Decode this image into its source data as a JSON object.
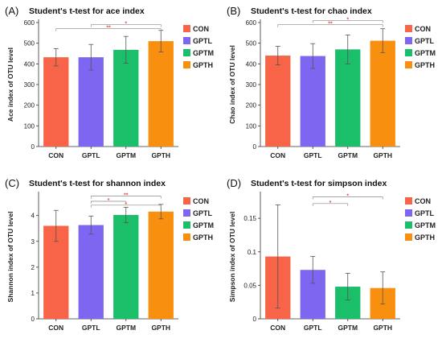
{
  "colors": {
    "CON": "#f76448",
    "GPTL": "#7f66f0",
    "GPTM": "#1bbf6a",
    "GPTH": "#f98f0f",
    "significance": "#e05555"
  },
  "chart_data": [
    {
      "panel": "(A)",
      "type": "bar",
      "title": "Student's t-test for ace index",
      "ylabel": "Ace index of OTU level",
      "xlabel": "",
      "categories": [
        "CON",
        "GPTL",
        "GPTM",
        "GPTH"
      ],
      "values": [
        432,
        432,
        468,
        510
      ],
      "errors": [
        42,
        62,
        65,
        52
      ],
      "ylim": [
        0,
        600
      ],
      "yticks": [
        "0",
        "100",
        "200",
        "300",
        "400",
        "500",
        "600"
      ],
      "legend": [
        "CON",
        "GPTL",
        "GPTM",
        "GPTH"
      ],
      "legend_position": "right",
      "significance": [
        {
          "from": 1,
          "to": 3,
          "label": "*",
          "y": 590
        },
        {
          "from": 0,
          "to": 3,
          "label": "**",
          "y": 570
        }
      ]
    },
    {
      "panel": "(B)",
      "type": "bar",
      "title": "Student's t-test for chao index",
      "ylabel": "Chao index of OTU level",
      "xlabel": "",
      "categories": [
        "CON",
        "GPTL",
        "GPTM",
        "GPTH"
      ],
      "values": [
        440,
        438,
        470,
        512
      ],
      "errors": [
        45,
        60,
        70,
        58
      ],
      "ylim": [
        0,
        600
      ],
      "yticks": [
        "0",
        "100",
        "200",
        "300",
        "400",
        "500",
        "600"
      ],
      "legend": [
        "CON",
        "GPTL",
        "GPTM",
        "GPTH"
      ],
      "legend_position": "right",
      "significance": [
        {
          "from": 1,
          "to": 3,
          "label": "*",
          "y": 610
        },
        {
          "from": 0,
          "to": 3,
          "label": "**",
          "y": 590
        }
      ]
    },
    {
      "panel": "(C)",
      "type": "bar",
      "title": "Student's t-test for shannon index",
      "ylabel": "Shannon index of OTU level",
      "xlabel": "",
      "categories": [
        "CON",
        "GPTL",
        "GPTM",
        "GPTH"
      ],
      "values": [
        3.6,
        3.63,
        4.02,
        4.15
      ],
      "errors": [
        0.6,
        0.35,
        0.3,
        0.28
      ],
      "ylim": [
        0,
        4.8
      ],
      "yticks": [
        "0",
        "1",
        "2",
        "3",
        "4"
      ],
      "legend": [
        "CON",
        "GPTL",
        "GPTM",
        "GPTH"
      ],
      "legend_position": "right",
      "significance": [
        {
          "from": 1,
          "to": 3,
          "label": "**",
          "y": 4.75
        },
        {
          "from": 1,
          "to": 2,
          "label": "*",
          "y": 4.55
        },
        {
          "from": 1,
          "to": 3,
          "label": "*",
          "y": 4.4
        }
      ]
    },
    {
      "panel": "(D)",
      "type": "bar",
      "title": "Student's t-test for simpson index",
      "ylabel": "Simpson index of OTU level",
      "xlabel": "",
      "categories": [
        "CON",
        "GPTL",
        "GPTM",
        "GPTH"
      ],
      "values": [
        0.093,
        0.073,
        0.048,
        0.046
      ],
      "errors": [
        0.077,
        0.02,
        0.02,
        0.024
      ],
      "ylim": [
        0,
        0.185
      ],
      "yticks": [
        "0",
        "0.05",
        "0.1",
        "0.15"
      ],
      "legend": [
        "CON",
        "GPTL",
        "GPTM",
        "GPTH"
      ],
      "legend_position": "right",
      "significance": [
        {
          "from": 1,
          "to": 3,
          "label": "*",
          "y": 0.182
        },
        {
          "from": 1,
          "to": 2,
          "label": "*",
          "y": 0.172
        }
      ]
    }
  ]
}
